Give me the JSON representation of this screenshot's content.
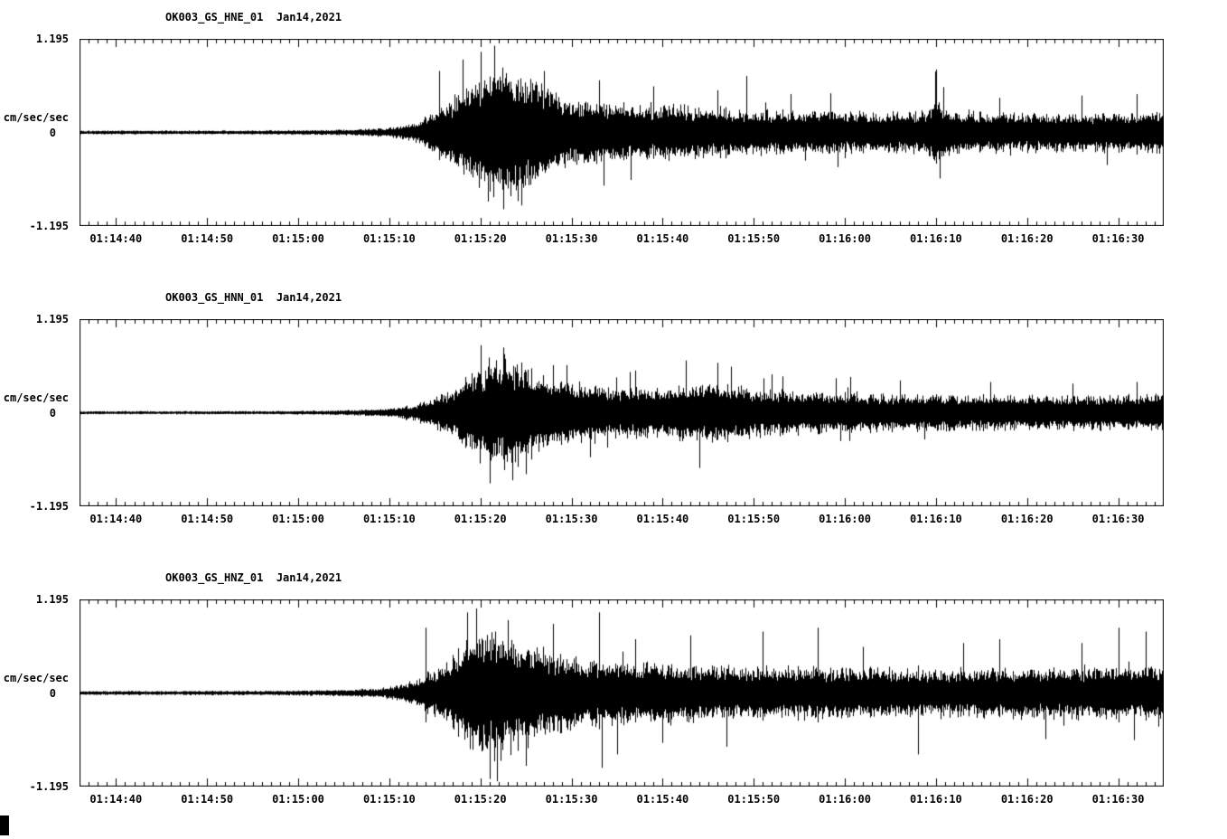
{
  "page": {
    "background": "#ffffff",
    "foreground": "#000000"
  },
  "chart_data": [
    {
      "id": "hne",
      "type": "line",
      "title": "OK003_GS_HNE_01  Jan14,2021",
      "ylabel": "cm/sec/sec",
      "y_tick_labels": [
        "1.195",
        "0",
        "-1.195"
      ],
      "ylim": [
        -1.195,
        1.195
      ],
      "x_window_seconds": 119,
      "x_tick_labels": [
        "01:14:40",
        "01:14:50",
        "01:15:00",
        "01:15:10",
        "01:15:20",
        "01:15:30",
        "01:15:40",
        "01:15:50",
        "01:16:00",
        "01:16:10",
        "01:16:20",
        "01:16:30"
      ],
      "x_tick_offsets_s": [
        4,
        14,
        24,
        34,
        44,
        54,
        64,
        74,
        84,
        94,
        104,
        114
      ],
      "minor_tick_interval_s": 1,
      "grid": false,
      "legend": "none",
      "envelope": [
        [
          0,
          0.028
        ],
        [
          20,
          0.03
        ],
        [
          26,
          0.035
        ],
        [
          30,
          0.045
        ],
        [
          33,
          0.06
        ],
        [
          35,
          0.09
        ],
        [
          37,
          0.16
        ],
        [
          39,
          0.3
        ],
        [
          41,
          0.5
        ],
        [
          43,
          0.75
        ],
        [
          45,
          0.95
        ],
        [
          47,
          1.0
        ],
        [
          48,
          0.95
        ],
        [
          50,
          0.75
        ],
        [
          52,
          0.6
        ],
        [
          54,
          0.5
        ],
        [
          57,
          0.45
        ],
        [
          60,
          0.42
        ],
        [
          64,
          0.4
        ],
        [
          68,
          0.37
        ],
        [
          72,
          0.35
        ],
        [
          76,
          0.33
        ],
        [
          80,
          0.32
        ],
        [
          85,
          0.3
        ],
        [
          90,
          0.29
        ],
        [
          93,
          0.33
        ],
        [
          94,
          0.5
        ],
        [
          95,
          0.34
        ],
        [
          98,
          0.3
        ],
        [
          103,
          0.29
        ],
        [
          108,
          0.28
        ],
        [
          113,
          0.29
        ],
        [
          119,
          0.3
        ]
      ],
      "spikes": [
        [
          39.5,
          0.8
        ],
        [
          42,
          0.95
        ],
        [
          44,
          1.05
        ],
        [
          45.5,
          1.13
        ],
        [
          44.8,
          -0.9
        ],
        [
          46.5,
          -1.0
        ],
        [
          48.5,
          -0.95
        ],
        [
          51,
          0.8
        ],
        [
          57,
          0.68
        ],
        [
          60.5,
          -0.62
        ],
        [
          63,
          0.6
        ],
        [
          70,
          0.55
        ],
        [
          78,
          0.5
        ],
        [
          94,
          0.82
        ],
        [
          94.4,
          -0.6
        ],
        [
          101,
          0.45
        ],
        [
          110,
          0.48
        ],
        [
          116,
          0.5
        ]
      ],
      "seed": 101
    },
    {
      "id": "hnn",
      "type": "line",
      "title": "OK003_GS_HNN_01  Jan14,2021",
      "ylabel": "cm/sec/sec",
      "y_tick_labels": [
        "1.195",
        "0",
        "-1.195"
      ],
      "ylim": [
        -1.195,
        1.195
      ],
      "x_window_seconds": 119,
      "x_tick_labels": [
        "01:14:40",
        "01:14:50",
        "01:15:00",
        "01:15:10",
        "01:15:20",
        "01:15:30",
        "01:15:40",
        "01:15:50",
        "01:16:00",
        "01:16:10",
        "01:16:20",
        "01:16:30"
      ],
      "x_tick_offsets_s": [
        4,
        14,
        24,
        34,
        44,
        54,
        64,
        74,
        84,
        94,
        104,
        114
      ],
      "minor_tick_interval_s": 1,
      "grid": false,
      "legend": "none",
      "envelope": [
        [
          0,
          0.022
        ],
        [
          20,
          0.025
        ],
        [
          26,
          0.03
        ],
        [
          30,
          0.04
        ],
        [
          33,
          0.055
        ],
        [
          35,
          0.08
        ],
        [
          37,
          0.13
        ],
        [
          39,
          0.22
        ],
        [
          41,
          0.38
        ],
        [
          43,
          0.6
        ],
        [
          45,
          0.78
        ],
        [
          46,
          0.82
        ],
        [
          48,
          0.75
        ],
        [
          50,
          0.6
        ],
        [
          52,
          0.5
        ],
        [
          55,
          0.44
        ],
        [
          58,
          0.4
        ],
        [
          62,
          0.37
        ],
        [
          66,
          0.4
        ],
        [
          69,
          0.44
        ],
        [
          71,
          0.42
        ],
        [
          74,
          0.36
        ],
        [
          78,
          0.32
        ],
        [
          82,
          0.3
        ],
        [
          87,
          0.28
        ],
        [
          92,
          0.27
        ],
        [
          98,
          0.26
        ],
        [
          105,
          0.25
        ],
        [
          112,
          0.25
        ],
        [
          119,
          0.26
        ]
      ],
      "spikes": [
        [
          44,
          0.88
        ],
        [
          45,
          -0.92
        ],
        [
          46.5,
          0.85
        ],
        [
          47.5,
          -0.88
        ],
        [
          49,
          -0.8
        ],
        [
          52,
          0.62
        ],
        [
          56,
          -0.58
        ],
        [
          61,
          0.55
        ],
        [
          66.5,
          0.68
        ],
        [
          68,
          -0.72
        ],
        [
          70,
          0.65
        ],
        [
          71.5,
          0.6
        ],
        [
          76,
          0.5
        ],
        [
          83,
          0.45
        ],
        [
          90,
          0.42
        ],
        [
          100,
          0.4
        ],
        [
          109,
          0.38
        ],
        [
          116,
          0.4
        ]
      ],
      "seed": 202
    },
    {
      "id": "hnz",
      "type": "line",
      "title": "OK003_GS_HNZ_01  Jan14,2021",
      "ylabel": "cm/sec/sec",
      "y_tick_labels": [
        "1.195",
        "0",
        "-1.195"
      ],
      "ylim": [
        -1.195,
        1.195
      ],
      "x_window_seconds": 119,
      "x_tick_labels": [
        "01:14:40",
        "01:14:50",
        "01:15:00",
        "01:15:10",
        "01:15:20",
        "01:15:30",
        "01:15:40",
        "01:15:50",
        "01:16:00",
        "01:16:10",
        "01:16:20",
        "01:16:30"
      ],
      "x_tick_offsets_s": [
        4,
        14,
        24,
        34,
        44,
        54,
        64,
        74,
        84,
        94,
        104,
        114
      ],
      "minor_tick_interval_s": 1,
      "grid": false,
      "legend": "none",
      "envelope": [
        [
          0,
          0.028
        ],
        [
          20,
          0.032
        ],
        [
          26,
          0.04
        ],
        [
          30,
          0.05
        ],
        [
          33,
          0.07
        ],
        [
          35,
          0.11
        ],
        [
          37,
          0.2
        ],
        [
          39,
          0.35
        ],
        [
          41,
          0.55
        ],
        [
          43,
          0.8
        ],
        [
          45,
          0.95
        ],
        [
          46,
          0.98
        ],
        [
          48,
          0.85
        ],
        [
          50,
          0.7
        ],
        [
          52,
          0.6
        ],
        [
          55,
          0.52
        ],
        [
          58,
          0.48
        ],
        [
          62,
          0.44
        ],
        [
          66,
          0.42
        ],
        [
          70,
          0.4
        ],
        [
          75,
          0.38
        ],
        [
          80,
          0.37
        ],
        [
          85,
          0.36
        ],
        [
          90,
          0.35
        ],
        [
          95,
          0.35
        ],
        [
          100,
          0.36
        ],
        [
          105,
          0.37
        ],
        [
          110,
          0.38
        ],
        [
          115,
          0.39
        ],
        [
          119,
          0.4
        ]
      ],
      "spikes": [
        [
          38,
          0.85
        ],
        [
          42.5,
          1.05
        ],
        [
          43.5,
          1.1
        ],
        [
          45,
          -1.12
        ],
        [
          45.8,
          -1.15
        ],
        [
          47,
          0.95
        ],
        [
          49,
          -0.95
        ],
        [
          52,
          0.9
        ],
        [
          57,
          1.05
        ],
        [
          59,
          -0.8
        ],
        [
          61,
          0.7
        ],
        [
          64,
          -0.65
        ],
        [
          67,
          0.75
        ],
        [
          71,
          -0.7
        ],
        [
          75,
          0.8
        ],
        [
          81,
          0.85
        ],
        [
          86,
          0.6
        ],
        [
          92,
          -0.8
        ],
        [
          97,
          0.65
        ],
        [
          101,
          0.7
        ],
        [
          106,
          -0.6
        ],
        [
          110,
          0.65
        ],
        [
          114,
          0.85
        ],
        [
          117,
          0.8
        ]
      ],
      "seed": 303
    }
  ]
}
